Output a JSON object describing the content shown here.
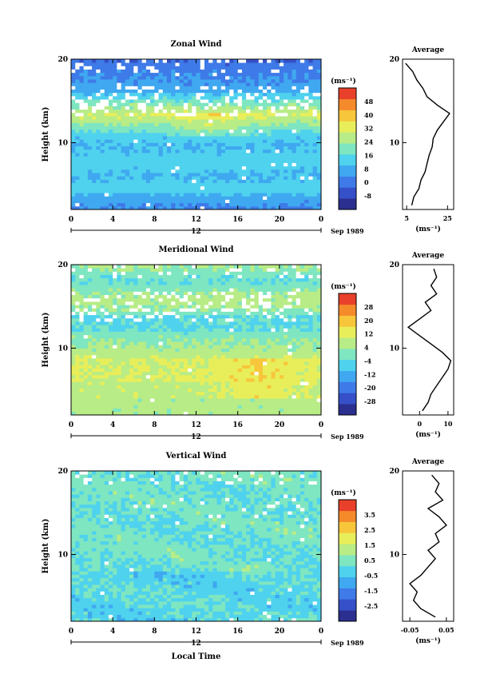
{
  "x_tick_labels": [
    "0",
    "4",
    "8",
    "12",
    "16",
    "20",
    "0"
  ],
  "date_label_day": "12",
  "date_label_month": "Sep 1989",
  "xlabel": "Local Time",
  "ylabel": "Height (km)",
  "y_tick_labels": [
    "20",
    "10"
  ],
  "avg_title": "Average",
  "unit_label": "(ms⁻¹)",
  "chart_data": [
    {
      "type": "heatmap",
      "title": "Zonal Wind",
      "xlabel": "",
      "ylabel": "Height (km)",
      "xlim": [
        0,
        24
      ],
      "ylim": [
        2,
        20
      ],
      "colorbar_unit": "(ms⁻¹)",
      "colorbar_levels": [
        -8,
        0,
        8,
        16,
        24,
        32,
        40,
        48
      ],
      "colorbar_tick_labels": [
        "48",
        "40",
        "32",
        "24",
        "16",
        "8",
        "0",
        "-8"
      ],
      "avg_title": "Average",
      "avg_xlabel": "(ms⁻¹)",
      "avg_xticks": [
        5,
        25
      ],
      "avg_xtick_labels": [
        "5",
        "25"
      ],
      "avg_xlim": [
        3,
        28
      ],
      "avg_profile": {
        "height": [
          2.5,
          3.5,
          4.5,
          5.5,
          6.5,
          7.5,
          8.5,
          9.5,
          10.5,
          11.5,
          12.5,
          13.5,
          14.5,
          15.5,
          16.5,
          17.5,
          18.5,
          19.5
        ],
        "value": [
          7.5,
          8.5,
          11,
          12,
          14,
          15,
          16,
          17.5,
          18,
          20,
          23,
          26,
          20,
          15,
          13,
          10,
          8,
          4.5
        ]
      }
    },
    {
      "type": "heatmap",
      "title": "Meridional Wind",
      "xlabel": "",
      "ylabel": "Height (km)",
      "xlim": [
        0,
        24
      ],
      "ylim": [
        2,
        20
      ],
      "colorbar_unit": "(ms⁻¹)",
      "colorbar_levels": [
        -28,
        -20,
        -12,
        -4,
        4,
        12,
        20,
        28
      ],
      "colorbar_tick_labels": [
        "28",
        "20",
        "12",
        "4",
        "-4",
        "-12",
        "-20",
        "-28"
      ],
      "avg_title": "Average",
      "avg_xlabel": "(ms⁻¹)",
      "avg_xticks": [
        0,
        10
      ],
      "avg_xtick_labels": [
        "0",
        "10"
      ],
      "avg_xlim": [
        -6,
        12
      ],
      "avg_profile": {
        "height": [
          2.5,
          3.5,
          4.5,
          5.5,
          6.5,
          7.5,
          8.5,
          9.5,
          10.5,
          11.5,
          12.5,
          13.5,
          14.5,
          15.5,
          16.5,
          17.5,
          18.5,
          19.5
        ],
        "value": [
          1,
          3,
          4,
          6,
          8,
          10,
          11,
          8,
          4,
          0,
          -4,
          0,
          4,
          2,
          6,
          4,
          6,
          5
        ]
      }
    },
    {
      "type": "heatmap",
      "title": "Vertical Wind",
      "xlabel": "Local Time",
      "ylabel": "Height (km)",
      "xlim": [
        0,
        24
      ],
      "ylim": [
        2,
        20
      ],
      "colorbar_unit": "(ms⁻¹)",
      "colorbar_levels": [
        -2.5,
        -1.5,
        -0.5,
        0.5,
        1.5,
        2.5,
        3.5
      ],
      "colorbar_tick_labels": [
        "3.5",
        "2.5",
        "1.5",
        "0.5",
        "-0.5",
        "-1.5",
        "-2.5"
      ],
      "avg_title": "Average",
      "avg_xlabel": "(ms⁻¹)",
      "avg_xticks": [
        -0.05,
        0.05
      ],
      "avg_xtick_labels": [
        "-0.05",
        "0.05"
      ],
      "avg_xlim": [
        -0.07,
        0.07
      ],
      "avg_profile": {
        "height": [
          2.5,
          3.5,
          4.5,
          5.5,
          6.5,
          7.5,
          8.5,
          9.5,
          10.5,
          11.5,
          12.5,
          13.5,
          14.5,
          15.5,
          16.5,
          17.5,
          18.5,
          19.5
        ],
        "value": [
          0.02,
          -0.02,
          -0.04,
          -0.03,
          -0.05,
          -0.02,
          0.0,
          0.02,
          0.0,
          0.03,
          0.02,
          0.05,
          0.03,
          0.0,
          0.04,
          0.02,
          0.03,
          0.01
        ]
      }
    }
  ]
}
